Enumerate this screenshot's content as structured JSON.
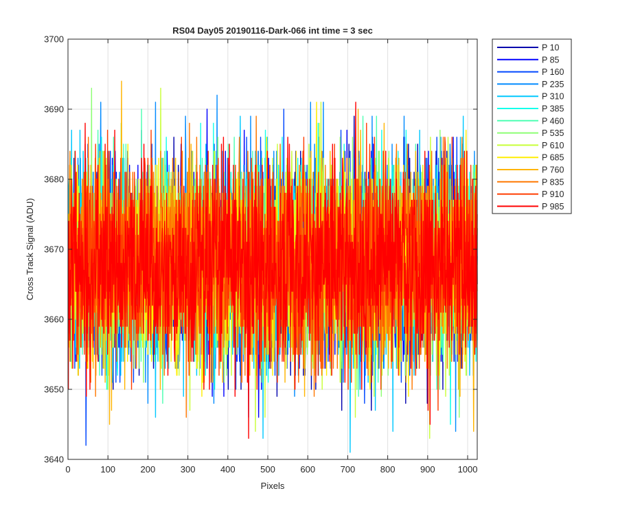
{
  "chart_data": {
    "type": "line",
    "title": "RS04 Day05 20190116-Dark-066 int time = 3 sec",
    "xlabel": "Pixels",
    "ylabel": "Cross Track Signal (ADU)",
    "xlim": [
      0,
      1024
    ],
    "ylim": [
      3640,
      3700
    ],
    "xticks": [
      0,
      100,
      200,
      300,
      400,
      500,
      600,
      700,
      800,
      900,
      1000
    ],
    "yticks": [
      3640,
      3650,
      3660,
      3670,
      3680,
      3690,
      3700
    ],
    "grid": true,
    "legend_position": "outside-top-right",
    "n_points": 1024,
    "noise_note": "Each series is dark-frame noise: mean about 3668 ADU, std about 7 ADU, range roughly 3640 to 3695 ADU",
    "series": [
      {
        "name": "P 10",
        "color": "#0000ad",
        "mean": 3668,
        "std": 7.0
      },
      {
        "name": "P 85",
        "color": "#0000ff",
        "mean": 3668,
        "std": 7.0
      },
      {
        "name": "P 160",
        "color": "#0047ff",
        "mean": 3668,
        "std": 7.0
      },
      {
        "name": "P 235",
        "color": "#008aff",
        "mean": 3668,
        "std": 7.0
      },
      {
        "name": "P 310",
        "color": "#00c8ff",
        "mean": 3668,
        "std": 7.0
      },
      {
        "name": "P 385",
        "color": "#14ffeb",
        "mean": 3668,
        "std": 7.0
      },
      {
        "name": "P 460",
        "color": "#4dffb2",
        "mean": 3668,
        "std": 7.0
      },
      {
        "name": "P 535",
        "color": "#8cff73",
        "mean": 3668,
        "std": 7.0
      },
      {
        "name": "P 610",
        "color": "#c8ff37",
        "mean": 3668,
        "std": 7.0
      },
      {
        "name": "P 685",
        "color": "#ffee00",
        "mean": 3668,
        "std": 7.0
      },
      {
        "name": "P 760",
        "color": "#ffb400",
        "mean": 3668,
        "std": 7.0
      },
      {
        "name": "P 835",
        "color": "#ff7800",
        "mean": 3668,
        "std": 7.0
      },
      {
        "name": "P 910",
        "color": "#ff3c00",
        "mean": 3668,
        "std": 7.0
      },
      {
        "name": "P 985",
        "color": "#ff0000",
        "mean": 3668,
        "std": 7.0
      }
    ]
  }
}
